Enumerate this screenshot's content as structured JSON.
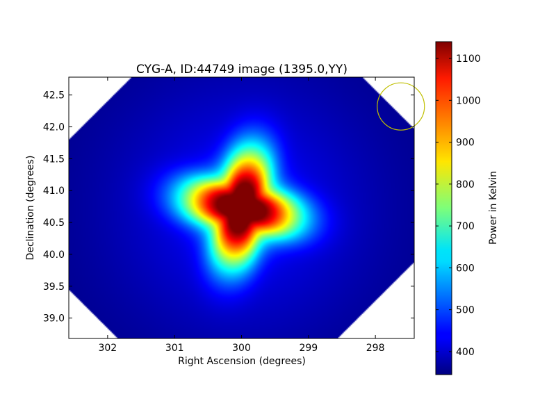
{
  "chart_data": {
    "type": "heatmap",
    "title": "CYG-A, ID:44749 image (1395.0,YY)",
    "xlabel": "Right Ascension (degrees)",
    "ylabel": "Declination (degrees)",
    "xlim": [
      302.58,
      297.42
    ],
    "ylim": [
      38.68,
      42.78
    ],
    "x_ticks": [
      302,
      301,
      300,
      299,
      298
    ],
    "y_ticks": [
      39.0,
      39.5,
      40.0,
      40.5,
      41.0,
      41.5,
      42.0,
      42.5
    ],
    "x_tick_labels": [
      "302",
      "301",
      "300",
      "299",
      "298"
    ],
    "y_tick_labels": [
      "39.0",
      "39.5",
      "40.0",
      "40.5",
      "41.0",
      "41.5",
      "42.0",
      "42.5"
    ],
    "colormap": "jet",
    "colorbar": {
      "label": "Power in Kelvin",
      "min": 345,
      "max": 1140,
      "ticks": [
        400,
        500,
        600,
        700,
        800,
        900,
        1000,
        1100
      ],
      "tick_labels": [
        "400",
        "500",
        "600",
        "700",
        "800",
        "900",
        "1000",
        "1100"
      ]
    },
    "source_peak": {
      "ra": 300.0,
      "dec": 40.73,
      "value": 1140
    },
    "background_value": 352,
    "beam_circle": {
      "ra": 297.62,
      "dec": 42.32,
      "color": "#bfbf00"
    },
    "grid": false
  }
}
